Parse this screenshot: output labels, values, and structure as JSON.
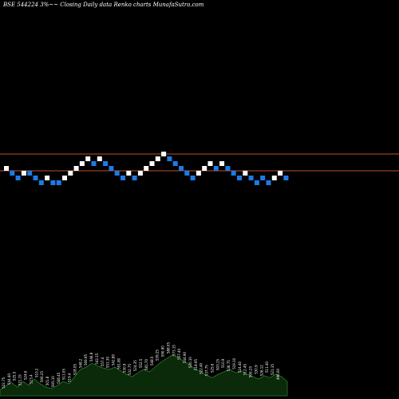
{
  "chart_data": {
    "type": "renko",
    "title": "BSE 544224  3%~~ Closing Daily data  Renko  charts MunafaSutra.com",
    "background": "#000000",
    "colors": {
      "up_brick": "#ffffff",
      "down_brick": "#1e7ae6",
      "reference_line": "#c0502a",
      "volume_fill": "#0a2a0a",
      "volume_stroke": "#2a7a2a",
      "volume_label": "#ffffff"
    },
    "reference_lines": [
      {
        "value_level": 6
      },
      {
        "value_level": 3
      }
    ],
    "bricks": [
      {
        "level": 4,
        "dir": "up"
      },
      {
        "level": 3,
        "dir": "down"
      },
      {
        "level": 2,
        "dir": "down"
      },
      {
        "level": 3,
        "dir": "up"
      },
      {
        "level": 3,
        "dir": "down"
      },
      {
        "level": 2,
        "dir": "down"
      },
      {
        "level": 1,
        "dir": "down"
      },
      {
        "level": 2,
        "dir": "up"
      },
      {
        "level": 1,
        "dir": "down"
      },
      {
        "level": 1,
        "dir": "down"
      },
      {
        "level": 2,
        "dir": "up"
      },
      {
        "level": 3,
        "dir": "up"
      },
      {
        "level": 4,
        "dir": "up"
      },
      {
        "level": 5,
        "dir": "up"
      },
      {
        "level": 6,
        "dir": "up"
      },
      {
        "level": 5,
        "dir": "down"
      },
      {
        "level": 6,
        "dir": "up"
      },
      {
        "level": 5,
        "dir": "down"
      },
      {
        "level": 4,
        "dir": "down"
      },
      {
        "level": 3,
        "dir": "down"
      },
      {
        "level": 2,
        "dir": "down"
      },
      {
        "level": 3,
        "dir": "up"
      },
      {
        "level": 2,
        "dir": "down"
      },
      {
        "level": 3,
        "dir": "up"
      },
      {
        "level": 4,
        "dir": "up"
      },
      {
        "level": 5,
        "dir": "up"
      },
      {
        "level": 6,
        "dir": "up"
      },
      {
        "level": 7,
        "dir": "up"
      },
      {
        "level": 6,
        "dir": "down"
      },
      {
        "level": 5,
        "dir": "down"
      },
      {
        "level": 4,
        "dir": "down"
      },
      {
        "level": 3,
        "dir": "down"
      },
      {
        "level": 2,
        "dir": "down"
      },
      {
        "level": 3,
        "dir": "up"
      },
      {
        "level": 4,
        "dir": "up"
      },
      {
        "level": 5,
        "dir": "up"
      },
      {
        "level": 4,
        "dir": "down"
      },
      {
        "level": 5,
        "dir": "up"
      },
      {
        "level": 4,
        "dir": "down"
      },
      {
        "level": 3,
        "dir": "down"
      },
      {
        "level": 2,
        "dir": "down"
      },
      {
        "level": 3,
        "dir": "up"
      },
      {
        "level": 2,
        "dir": "down"
      },
      {
        "level": 1,
        "dir": "down"
      },
      {
        "level": 2,
        "dir": "down"
      },
      {
        "level": 1,
        "dir": "down"
      },
      {
        "level": 2,
        "dir": "up"
      },
      {
        "level": 3,
        "dir": "up"
      },
      {
        "level": 2,
        "dir": "down"
      }
    ],
    "volume_labels": [
      "522.75",
      "544.40",
      "525.5",
      "521.15",
      "524.6",
      "513.4",
      "510.2",
      "506.25",
      "501.8",
      "505.10",
      "508.45",
      "511.05",
      "519.4",
      "528.05",
      "548.2",
      "569.95",
      "546.8",
      "543.15",
      "557.4",
      "551.30",
      "542.80",
      "551.80",
      "530.9",
      "532.75",
      "524.35",
      "552.5",
      "581.70",
      "548.5",
      "539.25",
      "590.90",
      "588.05",
      "573.15",
      "557.40",
      "544.90",
      "530.10",
      "518.95",
      "522.40",
      "537.75",
      "525.6",
      "503.15",
      "510.9",
      "536.75",
      "519.10",
      "524.40",
      "512.45",
      "506.25",
      "530.9",
      "526.12",
      "511.40",
      "521.35",
      "496.00"
    ],
    "volume_profile": [
      0.12,
      0.2,
      0.28,
      0.18,
      0.3,
      0.22,
      0.35,
      0.25,
      0.18,
      0.15,
      0.22,
      0.3,
      0.25,
      0.4,
      0.55,
      0.6,
      0.68,
      0.62,
      0.58,
      0.55,
      0.6,
      0.52,
      0.45,
      0.4,
      0.48,
      0.55,
      0.5,
      0.6,
      0.7,
      0.78,
      0.85,
      0.8,
      0.72,
      0.65,
      0.55,
      0.5,
      0.42,
      0.38,
      0.45,
      0.5,
      0.55,
      0.48,
      0.52,
      0.45,
      0.4,
      0.35,
      0.42,
      0.38,
      0.45,
      0.4,
      0.3
    ]
  }
}
